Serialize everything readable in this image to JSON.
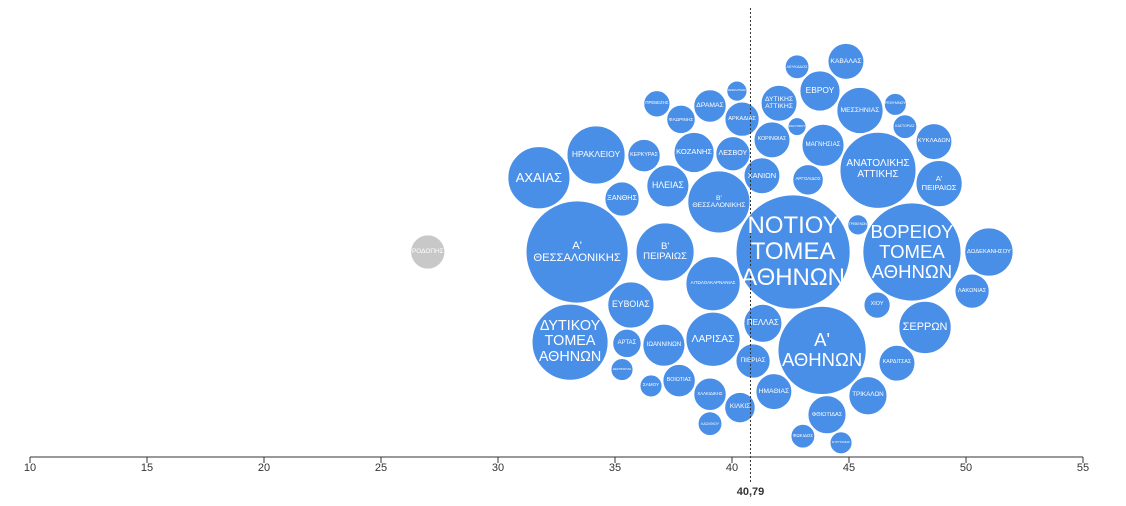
{
  "chart_data": {
    "type": "bubble-swarm",
    "color": "#4a8fe7",
    "xlim": [
      10,
      55
    ],
    "xticks": [
      10,
      15,
      20,
      25,
      30,
      35,
      40,
      45,
      50,
      55
    ],
    "reference": {
      "value": 40.79,
      "label": "40,79"
    },
    "points": [
      {
        "label": "ΡΟΔΟΠΗΣ",
        "x": 27.0,
        "size": 2.9,
        "color": "#c8c8c8"
      },
      {
        "label": "ΑΧΑΙΑΣ",
        "x": 31.75,
        "size": 9.6
      },
      {
        "label": "ΔΥΤΙΚΟΥ ΤΟΜΕΑ ΑΘΗΝΩΝ",
        "x": 33.08,
        "size": 14.4
      },
      {
        "label": "ΗΡΑΚΛΕΙΟΥ",
        "x": 34.19,
        "size": 8.4
      },
      {
        "label": "Α' ΘΕΣΣΑΛΟΝΙΚΗΣ",
        "x": 33.38,
        "size": 26.0
      },
      {
        "label": "ΑΡΤΑΣ",
        "x": 35.51,
        "size": 2.0
      },
      {
        "label": "ΚΕΡΚΥΡΑΣ",
        "x": 36.24,
        "size": 2.6
      },
      {
        "label": "ΕΥΒΟΙΑΣ",
        "x": 35.68,
        "size": 5.3
      },
      {
        "label": "ΞΑΝΘΗΣ",
        "x": 35.3,
        "size": 2.9
      },
      {
        "label": "ΘΕΣΠΡΩΤΙΑΣ",
        "x": 35.3,
        "size": 1.2
      },
      {
        "label": "ΣΑΜΟΥ",
        "x": 36.54,
        "size": 1.2
      },
      {
        "label": "ΠΡΕΒΕΖΗΣ",
        "x": 36.79,
        "size": 1.7
      },
      {
        "label": "ΗΛΕΙΑΣ",
        "x": 37.26,
        "size": 4.4
      },
      {
        "label": "ΙΩΑΝΝΙΝΩΝ",
        "x": 37.09,
        "size": 4.4
      },
      {
        "label": "Β' ΠΕΙΡΑΙΩΣ",
        "x": 37.14,
        "size": 8.4
      },
      {
        "label": "ΚΟΖΑΝΗΣ",
        "x": 38.38,
        "size": 4.0
      },
      {
        "label": "ΦΛΩΡΙΝΗΣ",
        "x": 37.82,
        "size": 2.0
      },
      {
        "label": "ΒΟΙΩΤΙΑΣ",
        "x": 37.74,
        "size": 2.6
      },
      {
        "label": "ΑΙΤΩΛΟΑΚΑΡΝΑΝΙΑΣ",
        "x": 39.19,
        "size": 7.3
      },
      {
        "label": "ΧΑΛΚΙΔΙΚΗΣ",
        "x": 39.06,
        "size": 2.6
      },
      {
        "label": "ΔΡΑΜΑΣ",
        "x": 39.06,
        "size": 2.6
      },
      {
        "label": "ΛΑΣΙΘΙΟΥ",
        "x": 39.06,
        "size": 1.4
      },
      {
        "label": "Β' ΘΕΣΣΑΛΟΝΙΚΗΣ",
        "x": 39.44,
        "size": 9.6
      },
      {
        "label": "ΛΕΣΒΟΥ",
        "x": 40.04,
        "size": 2.9
      },
      {
        "label": "ΚΙΛΚΙΣ",
        "x": 40.34,
        "size": 2.3
      },
      {
        "label": "ΑΡΚΑΔΙΑΣ",
        "x": 40.43,
        "size": 2.9
      },
      {
        "label": "ΚΕΦΑΛΛΗΝΙΑΣ",
        "x": 40.21,
        "size": 1.0
      },
      {
        "label": "ΛΑΡΙΣΑΣ",
        "x": 39.19,
        "size": 7.3
      },
      {
        "label": "ΧΑΝΙΩΝ",
        "x": 41.28,
        "size": 3.2
      },
      {
        "label": "ΠΙΕΡΙΑΣ",
        "x": 40.9,
        "size": 2.9
      },
      {
        "label": "ΠΕΛΛΑΣ",
        "x": 41.32,
        "size": 3.6
      },
      {
        "label": "ΝΟΤΙΟΥ ΤΟΜΕΑ ΑΘΗΝΩΝ",
        "x": 42.61,
        "size": 32.5
      },
      {
        "label": "Α' ΑΘΗΝΩΝ",
        "x": 43.85,
        "size": 19.4
      },
      {
        "label": "ΚΟΡΙΝΘΙΑΣ",
        "x": 41.71,
        "size": 3.2
      },
      {
        "label": "ΗΜΑΘΙΑΣ",
        "x": 41.79,
        "size": 3.2
      },
      {
        "label": "ΔΥΤΙΚΗΣ ΑΤΤΙΚΗΣ",
        "x": 42.01,
        "size": 3.2
      },
      {
        "label": "ΦΩΚΙΔΟΣ",
        "x": 43.03,
        "size": 1.4
      },
      {
        "label": "ΑΡΓΟΛΙΔΟΣ",
        "x": 43.25,
        "size": 2.3
      },
      {
        "label": "ΖΑΚΥΝΘΟΥ",
        "x": 42.78,
        "size": 0.8
      },
      {
        "label": "ΕΒΡΟΥ",
        "x": 43.76,
        "size": 4.0
      },
      {
        "label": "ΛΕΥΚΑΔΟΣ",
        "x": 42.78,
        "size": 1.4
      },
      {
        "label": "ΜΑΓΝΗΣΙΑΣ",
        "x": 43.89,
        "size": 4.4
      },
      {
        "label": "ΚΑΒΑΛΑΣ",
        "x": 44.87,
        "size": 3.2
      },
      {
        "label": "ΦΘΙΩΤΙΔΑΣ",
        "x": 44.06,
        "size": 3.6
      },
      {
        "label": "ΕΥΡΥΤΑΝΙΑΣ",
        "x": 44.66,
        "size": 1.2
      },
      {
        "label": "ΓΡΕΒΕΝΩΝ",
        "x": 45.38,
        "size": 1.0
      },
      {
        "label": "ΜΕΣΣΗΝΙΑΣ",
        "x": 45.47,
        "size": 5.3
      },
      {
        "label": "ΑΝΑΤΟΛΙΚΗΣ ΑΤΤΙΚΗΣ",
        "x": 46.24,
        "size": 14.4
      },
      {
        "label": "ΤΡΙΚΑΛΩΝ",
        "x": 45.81,
        "size": 3.6
      },
      {
        "label": "ΧΙΟΥ",
        "x": 46.2,
        "size": 1.7
      },
      {
        "label": "ΚΑΡΔΙΤΣΑΣ",
        "x": 47.05,
        "size": 3.2
      },
      {
        "label": "ΒΟΡΕΙΟΥ ΤΟΜΕΑ ΑΘΗΝΩΝ",
        "x": 47.69,
        "size": 24.0
      },
      {
        "label": "ΡΕΘΥΜΝΟΥ",
        "x": 46.98,
        "size": 1.2
      },
      {
        "label": "ΚΑΣΤΟΡΙΑΣ",
        "x": 47.39,
        "size": 1.4
      },
      {
        "label": "ΚΥΚΛΑΔΩΝ",
        "x": 48.63,
        "size": 3.2
      },
      {
        "label": "Α' ΠΕΙΡΑΙΩΣ",
        "x": 48.85,
        "size": 5.3
      },
      {
        "label": "ΛΑΚΩΝΙΑΣ",
        "x": 50.26,
        "size": 2.9
      },
      {
        "label": "ΔΩΔΕΚΑΝΗΣΟΥ",
        "x": 50.98,
        "size": 5.8
      },
      {
        "label": "ΣΕΡΡΩΝ",
        "x": 48.25,
        "size": 6.8
      }
    ]
  }
}
